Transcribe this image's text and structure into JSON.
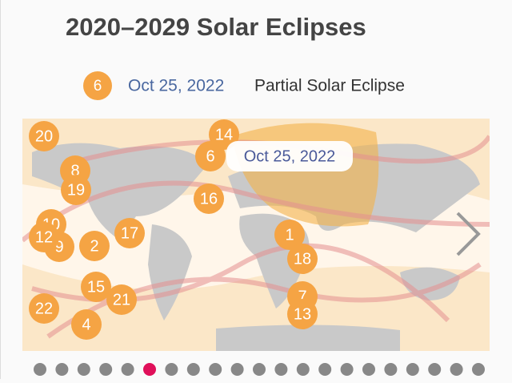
{
  "header": {
    "title": "2020–2029 Solar Eclipses"
  },
  "selected": {
    "number": "6",
    "date": "Oct 25, 2022",
    "kind": "Partial Solar Eclipse"
  },
  "map": {
    "tooltip": "Oct 25, 2022",
    "markers": [
      "20",
      "14",
      "6",
      "8",
      "19",
      "16",
      "10",
      "9",
      "12",
      "2",
      "17",
      "1",
      "18",
      "15",
      "21",
      "22",
      "4",
      "7",
      "13"
    ]
  }
}
